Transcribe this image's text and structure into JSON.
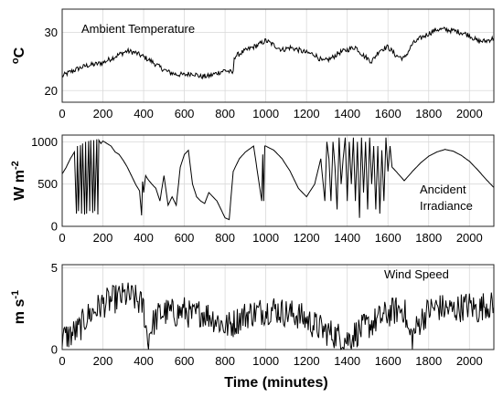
{
  "chart_data": [
    {
      "type": "line",
      "annotation": "Ambient Temperature",
      "ylabel_main": "C",
      "ylabel_sup": "o",
      "xlim": [
        0,
        2120
      ],
      "ylim": [
        18,
        34
      ],
      "yticks": [
        20,
        30
      ],
      "xticks": [
        0,
        200,
        400,
        600,
        800,
        1000,
        1200,
        1400,
        1600,
        1800,
        2000
      ],
      "grid": true,
      "noise": 0.45,
      "series": [
        {
          "x": [
            0,
            40,
            80,
            120,
            160,
            200,
            240,
            280,
            320,
            360,
            400,
            440,
            480,
            520,
            560,
            600,
            640,
            680,
            720,
            760,
            800,
            840,
            845,
            880,
            920,
            960,
            1000,
            1040,
            1080,
            1120,
            1160,
            1200,
            1240,
            1280,
            1320,
            1360,
            1400,
            1440,
            1480,
            1520,
            1560,
            1600,
            1640,
            1680,
            1720,
            1760,
            1800,
            1840,
            1880,
            1920,
            1960,
            2000,
            2040,
            2080,
            2120
          ],
          "y": [
            22.5,
            23.2,
            23.8,
            24.3,
            24.5,
            24.8,
            25.5,
            26.2,
            26.8,
            26.5,
            25.8,
            25.0,
            24.0,
            23.2,
            22.8,
            22.7,
            23.0,
            22.4,
            22.5,
            23.0,
            23.5,
            23.0,
            25.8,
            26.5,
            27.2,
            27.8,
            28.6,
            27.8,
            27.0,
            27.4,
            27.0,
            26.5,
            26.2,
            25.0,
            25.5,
            26.5,
            27.0,
            27.5,
            26.0,
            25.0,
            27.0,
            27.5,
            26.0,
            25.5,
            28.0,
            29.0,
            29.8,
            30.5,
            30.5,
            30.3,
            30.0,
            29.5,
            28.5,
            28.5,
            29.0
          ]
        }
      ]
    },
    {
      "type": "line",
      "annotation": [
        "Ancident",
        "Irradiance"
      ],
      "ylabel_main": "W m",
      "ylabel_sup": "-2",
      "xlim": [
        0,
        2120
      ],
      "ylim": [
        0,
        1080
      ],
      "yticks": [
        0,
        500,
        1000
      ],
      "xticks": [
        0,
        200,
        400,
        600,
        800,
        1000,
        1200,
        1400,
        1600,
        1800,
        2000
      ],
      "grid": true,
      "noise": 0,
      "series": [
        {
          "x": [
            0,
            20,
            40,
            60,
            70,
            75,
            80,
            90,
            95,
            100,
            110,
            115,
            120,
            130,
            135,
            140,
            150,
            155,
            160,
            170,
            175,
            180,
            190,
            200,
            220,
            240,
            260,
            280,
            300,
            320,
            340,
            360,
            380,
            390,
            395,
            400,
            410,
            420,
            440,
            460,
            480,
            500,
            520,
            540,
            560,
            580,
            600,
            620,
            640,
            660,
            680,
            700,
            720,
            740,
            760,
            780,
            800,
            820,
            840,
            850,
            870,
            900,
            940,
            980,
            985,
            990,
            995,
            1000,
            1040,
            1080,
            1120,
            1160,
            1200,
            1240,
            1270,
            1290,
            1300,
            1310,
            1320,
            1330,
            1340,
            1350,
            1360,
            1370,
            1380,
            1390,
            1400,
            1410,
            1420,
            1430,
            1440,
            1450,
            1460,
            1470,
            1480,
            1490,
            1500,
            1510,
            1520,
            1530,
            1540,
            1550,
            1560,
            1570,
            1580,
            1590,
            1600,
            1610,
            1620,
            1640,
            1680,
            1720,
            1760,
            1800,
            1840,
            1880,
            1920,
            1960,
            2000,
            2040,
            2080,
            2120
          ],
          "y": [
            620,
            700,
            800,
            880,
            150,
            950,
            180,
            960,
            150,
            980,
            140,
            1000,
            150,
            1010,
            180,
            1020,
            160,
            1020,
            180,
            1030,
            140,
            1020,
            980,
            1010,
            980,
            950,
            880,
            850,
            780,
            700,
            600,
            500,
            420,
            130,
            530,
            400,
            600,
            560,
            500,
            450,
            300,
            600,
            250,
            350,
            250,
            700,
            850,
            900,
            500,
            350,
            300,
            270,
            400,
            350,
            300,
            200,
            100,
            80,
            650,
            700,
            800,
            880,
            950,
            300,
            850,
            300,
            950,
            950,
            900,
            800,
            650,
            450,
            350,
            500,
            800,
            300,
            1000,
            800,
            300,
            1000,
            700,
            200,
            1050,
            500,
            800,
            1050,
            300,
            1000,
            500,
            1050,
            300,
            1000,
            100,
            1050,
            400,
            1000,
            200,
            1050,
            500,
            950,
            200,
            950,
            150,
            900,
            300,
            1050,
            650,
            950,
            700,
            650,
            540,
            650,
            750,
            830,
            880,
            910,
            890,
            840,
            770,
            670,
            560,
            460
          ]
        }
      ]
    },
    {
      "type": "line",
      "annotation": "Wind Speed",
      "ylabel_main": "m s",
      "ylabel_sup": "-1",
      "xlim": [
        0,
        2120
      ],
      "ylim": [
        0,
        5.2
      ],
      "yticks": [
        0,
        5
      ],
      "xticks": [
        0,
        200,
        400,
        600,
        800,
        1000,
        1200,
        1400,
        1600,
        1800,
        2000
      ],
      "xlabel": "Time (minutes)",
      "grid": true,
      "noise": 0.9,
      "series": [
        {
          "x": [
            0,
            40,
            80,
            120,
            160,
            200,
            240,
            280,
            320,
            360,
            400,
            420,
            440,
            480,
            520,
            560,
            600,
            640,
            680,
            720,
            760,
            800,
            840,
            880,
            920,
            960,
            1000,
            1040,
            1080,
            1120,
            1160,
            1200,
            1240,
            1280,
            1320,
            1360,
            1400,
            1440,
            1480,
            1520,
            1560,
            1600,
            1640,
            1680,
            1700,
            1720,
            1760,
            1800,
            1840,
            1880,
            1920,
            1960,
            2000,
            2040,
            2080,
            2120
          ],
          "y": [
            0.7,
            0.9,
            1.2,
            2.0,
            2.4,
            2.8,
            3.0,
            3.2,
            3.3,
            3.1,
            2.6,
            0.5,
            1.5,
            2.2,
            2.3,
            2.2,
            2.4,
            2.0,
            2.3,
            2.1,
            1.8,
            1.4,
            1.6,
            2.0,
            2.2,
            2.3,
            2.4,
            2.5,
            2.3,
            2.2,
            2.1,
            1.8,
            1.5,
            1.2,
            1.0,
            0.8,
            0.6,
            1.0,
            1.3,
            1.6,
            1.9,
            2.2,
            2.4,
            2.5,
            1.0,
            0.8,
            1.8,
            2.4,
            2.6,
            2.5,
            2.4,
            2.6,
            2.7,
            2.4,
            2.8,
            2.6
          ]
        }
      ]
    }
  ]
}
